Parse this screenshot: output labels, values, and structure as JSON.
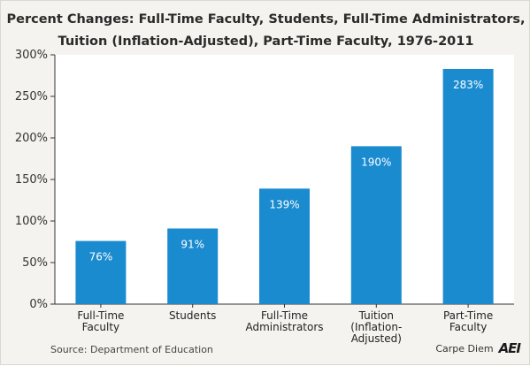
{
  "chart_data": {
    "type": "bar",
    "title_line1": "Percent Changes: Full-Time Faculty, Students, Full-Time Administrators,",
    "title_line2": "Tuition (Inflation-Adjusted), Part-Time Faculty, 1976-2011",
    "categories": [
      [
        "Full-Time",
        "Faculty"
      ],
      [
        "Students"
      ],
      [
        "Full-Time",
        "Administrators"
      ],
      [
        "Tuition",
        "(Inflation-",
        "Adjusted)"
      ],
      [
        "Part-Time",
        "Faculty"
      ]
    ],
    "values": [
      76,
      91,
      139,
      190,
      283
    ],
    "data_labels": [
      "76%",
      "91%",
      "139%",
      "190%",
      "283%"
    ],
    "ylim": [
      0,
      300
    ],
    "yticks": [
      0,
      50,
      100,
      150,
      200,
      250,
      300
    ],
    "ytick_labels": [
      "0%",
      "50%",
      "100%",
      "150%",
      "200%",
      "250%",
      "300%"
    ],
    "xlabel": "",
    "ylabel": "",
    "bar_color": "#1b8bcf",
    "grid": false,
    "legend": "none"
  },
  "source": "Source: Department of Education",
  "brand": {
    "name": "Carpe Diem",
    "logo_text": "AEI"
  }
}
